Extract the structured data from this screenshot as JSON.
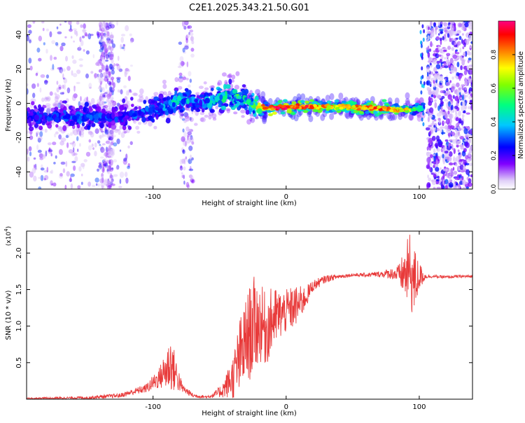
{
  "title": "C2E1.2025.343.21.50.G01",
  "chart_data": [
    {
      "type": "heatmap",
      "xlabel": "Height of straight line (km)",
      "ylabel": "Frequency (Hz)",
      "xlim": [
        -195,
        140
      ],
      "ylim": [
        -50,
        48
      ],
      "xticks": [
        -100,
        0,
        100
      ],
      "yticks": [
        -40,
        -20,
        0,
        20,
        40
      ],
      "colorbar": {
        "label": "Normalized spectral amplitude",
        "range": [
          0,
          1
        ],
        "ticks": [
          0.0,
          0.2,
          0.4,
          0.6,
          0.8
        ],
        "colors": [
          "#ffffff",
          "#d9c8f5",
          "#7b00ff",
          "#0000ff",
          "#00ffff",
          "#00ff00",
          "#ffff00",
          "#ff8000",
          "#ff0000",
          "#ff0080"
        ]
      },
      "ridge": {
        "x": [
          -195,
          -150,
          -120,
          -95,
          -80,
          -65,
          -50,
          -38,
          -30,
          -25,
          -15,
          0,
          40,
          70,
          90,
          100
        ],
        "freq_hz": [
          -8,
          -8,
          -7,
          -3,
          2,
          0,
          3,
          5,
          2,
          -2,
          -3,
          -2,
          -2,
          -3,
          -4,
          -3
        ],
        "amplitude": [
          0.3,
          0.35,
          0.3,
          0.45,
          0.5,
          0.4,
          0.55,
          0.6,
          0.5,
          0.7,
          0.9,
          1.0,
          0.8,
          0.9,
          0.8,
          0.5
        ]
      }
    },
    {
      "type": "line",
      "xlabel": "Height of straight line (km)",
      "ylabel": "SNR (10 * v/v)",
      "yscale_label": "(x10",
      "yscale_exp": "4",
      "xlim": [
        -195,
        140
      ],
      "ylim": [
        0,
        2.3
      ],
      "xticks": [
        -100,
        0,
        100
      ],
      "yticks": [
        0.5,
        1.0,
        1.5,
        2.0
      ],
      "ytick_labels": [
        "0.5",
        "1.0",
        "1.5",
        "2.0"
      ],
      "series": [
        {
          "name": "SNR",
          "color": "#e83a3a",
          "envelope": {
            "x": [
              -195,
              -150,
              -125,
              -105,
              -95,
              -90,
              -87,
              -83,
              -78,
              -70,
              -60,
              -55,
              -48,
              -40,
              -35,
              -30,
              -25,
              -20,
              -15,
              -10,
              -5,
              0,
              5,
              10,
              15,
              20,
              30,
              40,
              50,
              60,
              70,
              80,
              85,
              90,
              93,
              96,
              100,
              105,
              110,
              120,
              130,
              140
            ],
            "base": [
              0.01,
              0.02,
              0.05,
              0.15,
              0.3,
              0.4,
              0.5,
              0.35,
              0.15,
              0.05,
              0.03,
              0.05,
              0.12,
              0.3,
              0.55,
              0.8,
              1.0,
              1.05,
              0.95,
              1.1,
              1.15,
              1.2,
              1.25,
              1.3,
              1.4,
              1.55,
              1.65,
              1.68,
              1.7,
              1.7,
              1.71,
              1.72,
              1.7,
              1.72,
              1.75,
              1.6,
              1.68,
              1.68,
              1.68,
              1.67,
              1.68,
              1.68
            ],
            "amp": [
              0.01,
              0.02,
              0.03,
              0.06,
              0.15,
              0.3,
              0.4,
              0.25,
              0.06,
              0.03,
              0.02,
              0.03,
              0.1,
              0.3,
              0.55,
              0.6,
              0.7,
              0.55,
              0.5,
              0.45,
              0.35,
              0.3,
              0.3,
              0.25,
              0.15,
              0.08,
              0.05,
              0.03,
              0.02,
              0.03,
              0.04,
              0.08,
              0.15,
              0.4,
              0.55,
              0.5,
              0.2,
              0.03,
              0.02,
              0.02,
              0.02,
              0.02
            ]
          }
        }
      ]
    }
  ]
}
